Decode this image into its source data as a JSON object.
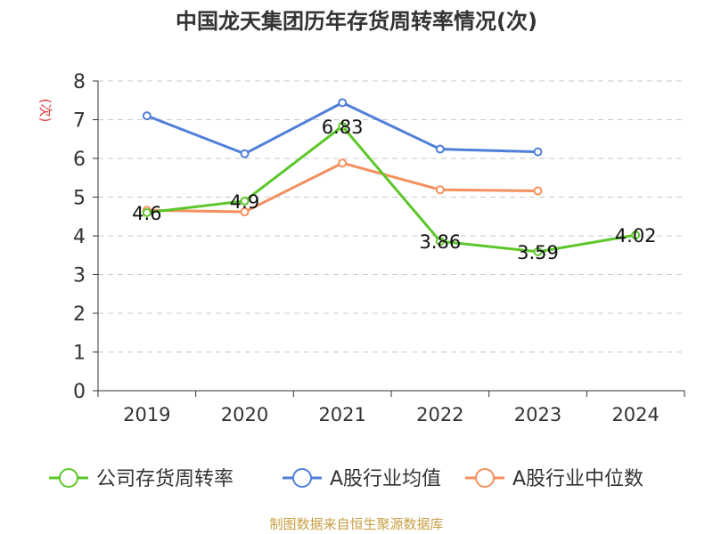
{
  "chart_data": {
    "type": "line",
    "title": "中国龙天集团历年存货周转率情况(次)",
    "ylabel": "(次)",
    "categories": [
      "2019",
      "2020",
      "2021",
      "2022",
      "2023",
      "2024"
    ],
    "ylim": [
      0,
      8
    ],
    "y_ticks": [
      "0",
      "1",
      "2",
      "3",
      "4",
      "5",
      "6",
      "7",
      "8"
    ],
    "grid": "horizontal dashed",
    "legend_position": "bottom",
    "series": [
      {
        "name": "公司存货周转率",
        "color": "#5cc72a",
        "values": [
          4.6,
          4.9,
          6.83,
          3.86,
          3.59,
          4.02
        ],
        "labels": [
          "4.6",
          "4.9",
          "6.83",
          "3.86",
          "3.59",
          "4.02"
        ]
      },
      {
        "name": "A股行业均值",
        "color": "#4f7fd8",
        "values": [
          7.1,
          6.12,
          7.44,
          6.24,
          6.17,
          null
        ]
      },
      {
        "name": "A股行业中位数",
        "color": "#f5905e",
        "values": [
          4.66,
          4.62,
          5.88,
          5.19,
          5.16,
          null
        ]
      }
    ]
  },
  "source": "制图数据来自恒生聚源数据库",
  "colors": {
    "title": "#333333",
    "axis": "#333333",
    "ylabel": "#e03a3a",
    "grid": "#c8c8c8",
    "source": "#c9a045"
  }
}
